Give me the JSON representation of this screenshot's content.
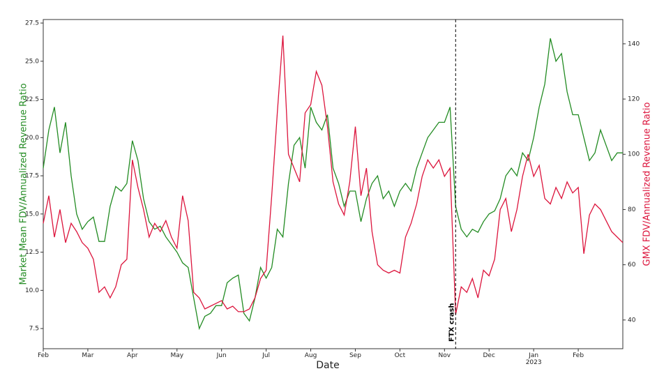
{
  "chart_data": {
    "type": "line",
    "xlabel": "Date",
    "ylabel": "Market Mean FDV/Annualized Revenue Ratio",
    "y2label": "GMX FDV/Annualized Revenue Ratio",
    "categories": [
      "Feb",
      null,
      null,
      null,
      null,
      null,
      null,
      null,
      "Mar",
      null,
      null,
      null,
      null,
      null,
      null,
      null,
      "Apr",
      null,
      null,
      null,
      null,
      null,
      null,
      null,
      "May",
      null,
      null,
      null,
      null,
      null,
      null,
      null,
      "Jun",
      null,
      null,
      null,
      null,
      null,
      null,
      null,
      "Jul",
      null,
      null,
      null,
      null,
      null,
      null,
      null,
      "Aug",
      null,
      null,
      null,
      null,
      null,
      null,
      null,
      "Sep",
      null,
      null,
      null,
      null,
      null,
      null,
      null,
      "Oct",
      null,
      null,
      null,
      null,
      null,
      null,
      null,
      "Nov",
      null,
      null,
      null,
      null,
      null,
      null,
      null,
      "Dec",
      null,
      null,
      null,
      null,
      null,
      null,
      null,
      "Jan\n2023",
      null,
      null,
      null,
      null,
      null,
      null,
      null,
      "Feb",
      null,
      null,
      null,
      null,
      null,
      null,
      null,
      null
    ],
    "series": [
      {
        "name": "Market Mean FDV/Annualized Revenue Ratio",
        "color": "#228B22",
        "axis": "y",
        "values": [
          18,
          20.5,
          22,
          19,
          21,
          17.5,
          15,
          14,
          14.5,
          14.8,
          13.2,
          13.2,
          15.5,
          16.8,
          16.5,
          17,
          19.8,
          18.5,
          16,
          14.5,
          14,
          14.2,
          13.5,
          13,
          12.5,
          11.8,
          11.5,
          9.5,
          7.5,
          8.3,
          8.5,
          9,
          9,
          10.5,
          10.8,
          11,
          8.5,
          8,
          9.5,
          11.5,
          10.8,
          11.5,
          14,
          13.5,
          17,
          19.5,
          20,
          18,
          22,
          21,
          20.5,
          21.5,
          18,
          17,
          15.5,
          16.5,
          16.5,
          14.5,
          16,
          17,
          17.5,
          16,
          16.5,
          15.5,
          16.5,
          17,
          16.5,
          18,
          19,
          20,
          20.5,
          21,
          21,
          22,
          15.5,
          14,
          13.5,
          14,
          13.8,
          14.5,
          15,
          15.2,
          16,
          17.5,
          18,
          17.5,
          19,
          18.5,
          20,
          22,
          23.5,
          26.5,
          25,
          25.5,
          23,
          21.5,
          21.5,
          20,
          18.5,
          19,
          20.5,
          19.5,
          18.5,
          19,
          19
        ]
      },
      {
        "name": "GMX FDV/Annualized Revenue Ratio",
        "color": "#DC143C",
        "axis": "y2",
        "values": [
          75,
          85,
          70,
          80,
          68,
          75,
          72,
          68,
          66,
          62,
          50,
          52,
          48,
          52,
          60,
          62,
          98,
          88,
          80,
          70,
          75,
          72,
          76,
          70,
          66,
          85,
          76,
          50,
          48,
          44,
          45,
          46,
          47,
          44,
          45,
          43,
          43,
          44,
          48,
          55,
          58,
          85,
          115,
          143,
          100,
          95,
          90,
          115,
          118,
          130,
          125,
          110,
          90,
          82,
          78,
          90,
          110,
          85,
          95,
          72,
          60,
          58,
          57,
          58,
          57,
          70,
          75,
          82,
          92,
          98,
          95,
          98,
          92,
          95,
          42,
          52,
          50,
          55,
          48,
          58,
          56,
          62,
          80,
          84,
          72,
          80,
          92,
          100,
          92,
          96,
          84,
          82,
          88,
          84,
          90,
          86,
          88,
          64,
          78,
          82,
          80,
          76,
          72,
          70,
          68
        ]
      }
    ],
    "ylim": [
      6.18,
      27.73
    ],
    "yticks": [
      7.5,
      {
        "value": 10,
        "label": "10.0"
      },
      12.5,
      {
        "value": 15,
        "label": "15.0"
      },
      17.5,
      {
        "value": 20,
        "label": "20.0"
      },
      22.5,
      {
        "value": 25,
        "label": "25.0"
      },
      27.5
    ],
    "y2lim": [
      29.6,
      148.8
    ],
    "y2ticks": [
      40,
      60,
      80,
      100,
      120,
      140
    ],
    "annotation": {
      "text": "FTX crash",
      "at": 74
    }
  }
}
